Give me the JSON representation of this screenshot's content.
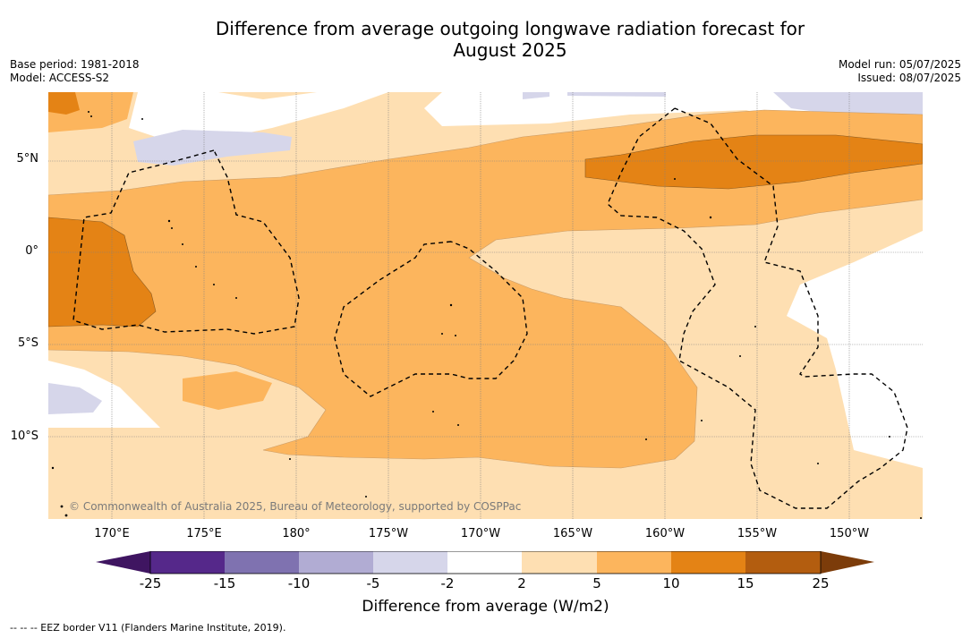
{
  "header": {
    "title_line1": "Difference from average outgoing longwave radiation forecast for",
    "title_line2": "August 2025",
    "base_period": "Base period: 1981-2018",
    "model": "Model: ACCESS-S2",
    "model_run": "Model run: 05/07/2025",
    "issued": "Issued: 08/07/2025"
  },
  "map": {
    "lat_labels": [
      "5°N",
      "0°",
      "5°S",
      "10°S"
    ],
    "lon_labels": [
      "170°E",
      "175°E",
      "180°",
      "175°W",
      "170°W",
      "165°W",
      "160°W",
      "155°W",
      "150°W"
    ],
    "copyright": "© Commonwealth of Australia 2025, Bureau of Meteorology, supported by COSPPac"
  },
  "colorbar": {
    "ticks": [
      "-25",
      "-15",
      "-10",
      "-5",
      "-2",
      "2",
      "5",
      "10",
      "15",
      "25"
    ],
    "colors": [
      "#3f1561",
      "#55288a",
      "#7f72b0",
      "#b1acd3",
      "#d6d6ea",
      "#ffffff",
      "#fedfb2",
      "#fcb55d",
      "#e48315",
      "#b35d0f",
      "#7c3c0a"
    ],
    "label": "Difference from average (W/m2)"
  },
  "legend": {
    "eez_note": "--  --  -- EEZ border V11 (Flanders Marine Institute, 2019)."
  }
}
